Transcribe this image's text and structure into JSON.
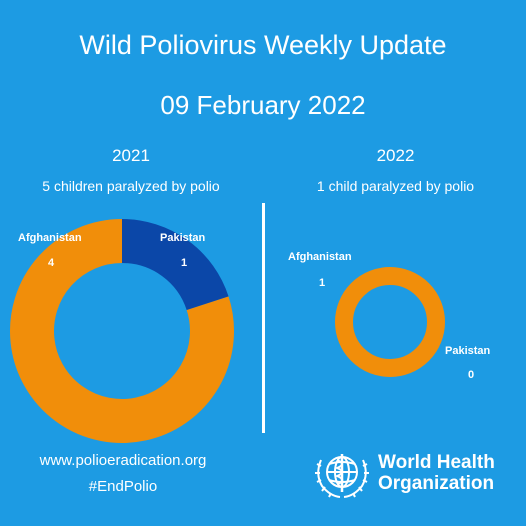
{
  "header": {
    "title": "Wild Poliovirus Weekly Update",
    "date": "09 February 2022"
  },
  "colors": {
    "background": "#1d9be3",
    "afghanistan": "#f18e0a",
    "pakistan": "#0b47a8",
    "text": "#ffffff"
  },
  "chart_data": [
    {
      "type": "pie",
      "title": "2021",
      "subtitle": "5 children paralyzed by polio",
      "categories": [
        "Afghanistan",
        "Pakistan"
      ],
      "values": [
        4,
        1
      ],
      "value_labels": [
        "4",
        "1"
      ]
    },
    {
      "type": "pie",
      "title": "2022",
      "subtitle": "1 child paralyzed by polio",
      "categories": [
        "Afghanistan",
        "Pakistan"
      ],
      "values": [
        1,
        0
      ],
      "value_labels": [
        "1",
        "0"
      ]
    }
  ],
  "footer": {
    "url": "www.polioeradication.org",
    "hashtag": "#EndPolio",
    "org_line1": "World Health",
    "org_line2": "Organization",
    "logo_icon": "who-emblem-icon"
  }
}
